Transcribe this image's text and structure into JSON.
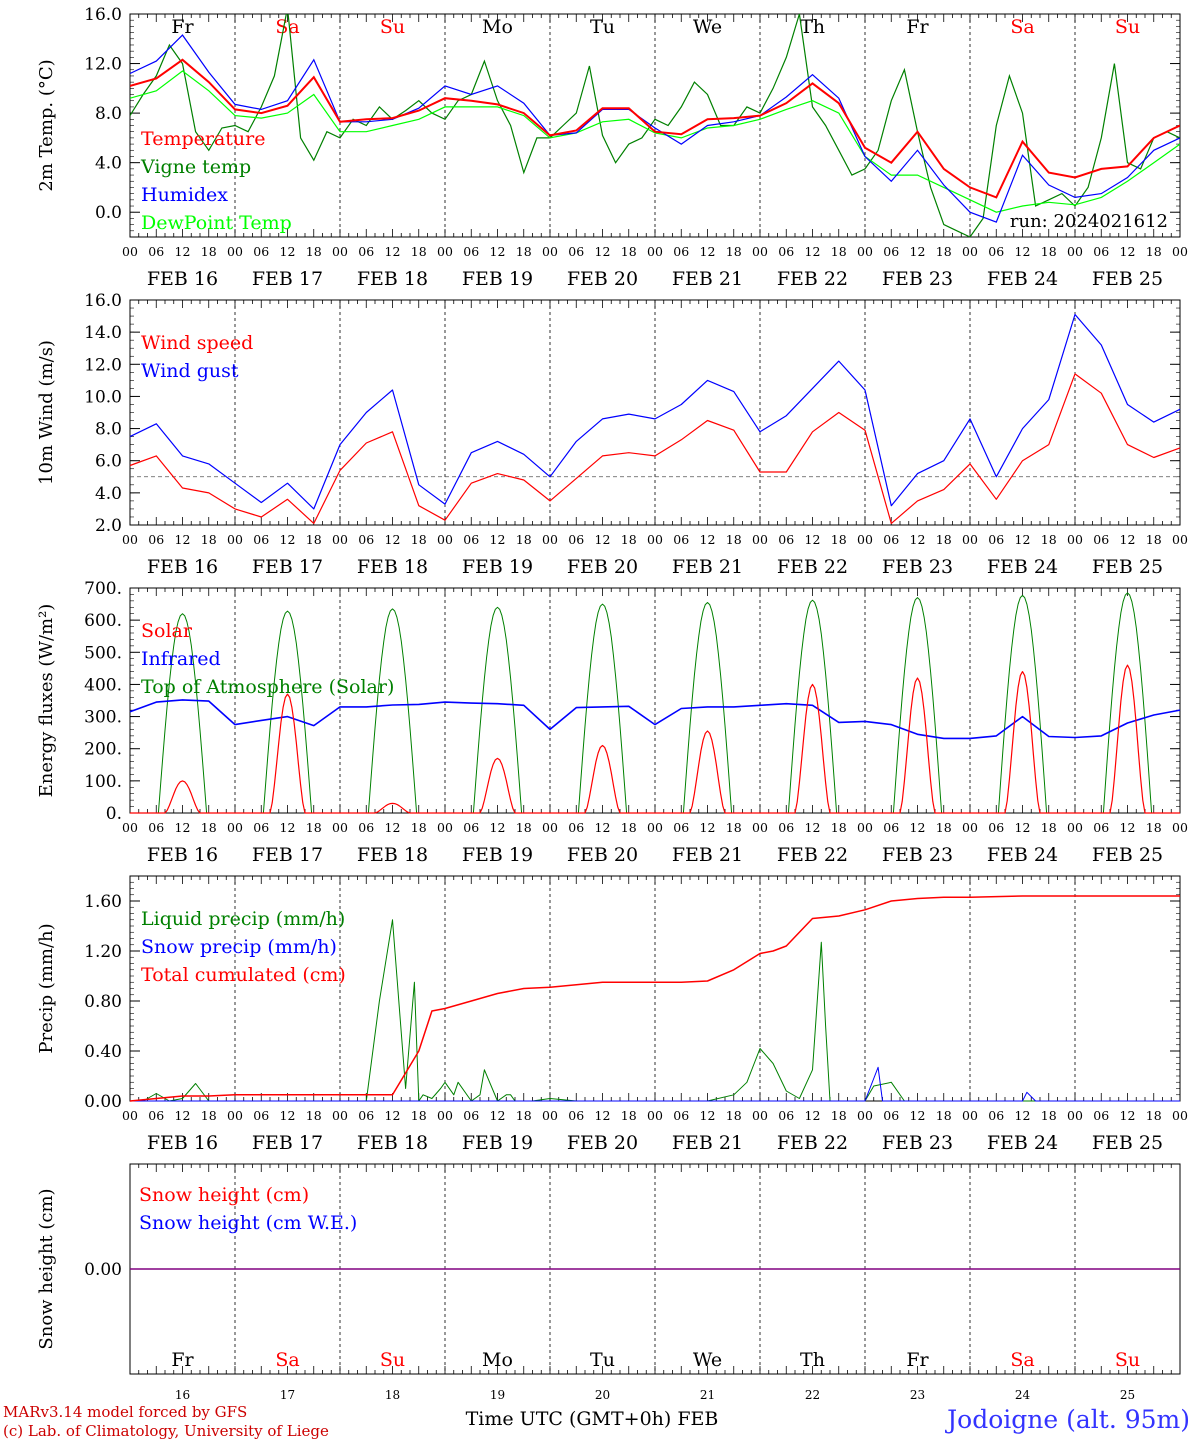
{
  "chart_data": [
    {
      "type": "line",
      "ylabel": "2m Temp. (°C)",
      "ylim": [
        -2.0,
        16.0
      ],
      "yticks": [
        "0.0",
        "4.0",
        "8.0",
        "12.0",
        "16.0"
      ],
      "x_unit": "hours since 00 UTC FEB 16",
      "day_labels": [
        "Fr",
        "Sa",
        "Su",
        "Mo",
        "Tu",
        "We",
        "Th",
        "Fr",
        "Sa",
        "Su"
      ],
      "legend": [
        "Temperature",
        "Vigne temp",
        "Humidex",
        "DewPoint Temp"
      ],
      "annotation": "run: 2024021612",
      "series": [
        {
          "name": "Temperature",
          "color": "#ff0000",
          "x": [
            0,
            6,
            12,
            18,
            24,
            30,
            36,
            42,
            48,
            54,
            60,
            66,
            72,
            78,
            84,
            90,
            96,
            102,
            108,
            114,
            120,
            126,
            132,
            138,
            144,
            150,
            156,
            162,
            168,
            174,
            180,
            186,
            192,
            198,
            204,
            210,
            216,
            222,
            228,
            234,
            240
          ],
          "y": [
            10.2,
            10.8,
            12.3,
            10.5,
            8.3,
            8.0,
            8.6,
            10.9,
            7.3,
            7.5,
            7.6,
            8.2,
            9.2,
            9.0,
            8.7,
            8.0,
            6.2,
            6.6,
            8.4,
            8.4,
            6.5,
            6.3,
            7.5,
            7.6,
            7.8,
            8.8,
            10.4,
            8.8,
            5.2,
            4.0,
            6.5,
            3.5,
            2.0,
            1.2,
            5.7,
            3.2,
            2.8,
            3.5,
            3.7,
            6.0,
            7.0
          ]
        },
        {
          "name": "Vigne temp",
          "color": "#008000",
          "x": [
            0,
            3,
            6,
            9,
            12,
            15,
            18,
            21,
            24,
            27,
            30,
            33,
            36,
            39,
            42,
            45,
            48,
            51,
            54,
            57,
            60,
            63,
            66,
            69,
            72,
            75,
            78,
            81,
            84,
            87,
            90,
            93,
            96,
            99,
            102,
            105,
            108,
            111,
            114,
            117,
            120,
            123,
            126,
            129,
            132,
            135,
            138,
            141,
            144,
            147,
            150,
            153,
            156,
            159,
            162,
            165,
            168,
            171,
            174,
            177,
            180,
            183,
            186,
            189,
            192,
            195,
            198,
            201,
            204,
            207,
            210,
            213,
            216,
            219,
            222,
            225,
            228,
            231,
            234,
            237,
            240
          ],
          "y": [
            7.8,
            9.5,
            11.0,
            13.5,
            12.0,
            6.5,
            5.0,
            6.8,
            7.0,
            6.5,
            8.5,
            11.0,
            16.5,
            6.0,
            4.2,
            6.5,
            6.0,
            7.5,
            7.0,
            8.5,
            7.5,
            8.2,
            9.0,
            8.0,
            7.5,
            9.0,
            9.5,
            12.2,
            9.0,
            7.0,
            3.2,
            6.0,
            6.0,
            7.0,
            8.0,
            11.8,
            6.2,
            4.0,
            5.5,
            6.0,
            7.5,
            7.0,
            8.5,
            10.5,
            9.5,
            7.0,
            7.0,
            8.5,
            8.0,
            10.0,
            12.5,
            16.0,
            8.5,
            7.0,
            5.0,
            3.0,
            3.5,
            5.0,
            9.0,
            11.5,
            6.5,
            2.0,
            -1.0,
            -1.5,
            -2.0,
            -0.5,
            7.0,
            11.0,
            8.0,
            0.5,
            1.0,
            1.5,
            0.5,
            2.0,
            6.0,
            12.0,
            4.0,
            3.5,
            6.0,
            6.5,
            6.0
          ]
        },
        {
          "name": "Humidex",
          "color": "#0000ff",
          "x": [
            0,
            6,
            12,
            18,
            24,
            30,
            36,
            42,
            48,
            54,
            60,
            66,
            72,
            78,
            84,
            90,
            96,
            102,
            108,
            114,
            120,
            126,
            132,
            138,
            144,
            150,
            156,
            162,
            168,
            174,
            180,
            186,
            192,
            198,
            204,
            210,
            216,
            222,
            228,
            234,
            240
          ],
          "y": [
            11.2,
            12.2,
            14.3,
            11.3,
            8.7,
            8.3,
            9.0,
            12.3,
            7.3,
            7.3,
            7.5,
            8.4,
            10.2,
            9.5,
            10.2,
            8.8,
            6.2,
            6.4,
            8.3,
            8.3,
            6.8,
            5.5,
            7.0,
            7.3,
            7.8,
            9.3,
            11.1,
            9.2,
            4.5,
            2.5,
            5.0,
            2.2,
            0.0,
            -0.8,
            4.6,
            2.2,
            1.2,
            1.5,
            2.8,
            5.0,
            6.0
          ]
        },
        {
          "name": "DewPoint Temp",
          "color": "#00ff00",
          "x": [
            0,
            6,
            12,
            18,
            24,
            30,
            36,
            42,
            48,
            54,
            60,
            66,
            72,
            78,
            84,
            90,
            96,
            102,
            108,
            114,
            120,
            126,
            132,
            138,
            144,
            150,
            156,
            162,
            168,
            174,
            180,
            186,
            192,
            198,
            204,
            210,
            216,
            222,
            228,
            234,
            240
          ],
          "y": [
            9.2,
            9.8,
            11.4,
            9.8,
            7.8,
            7.6,
            8.0,
            9.5,
            6.5,
            6.5,
            7.0,
            7.5,
            8.5,
            8.5,
            8.5,
            7.8,
            6.0,
            6.4,
            7.3,
            7.5,
            6.4,
            6.0,
            6.8,
            7.0,
            7.5,
            8.3,
            9.0,
            8.0,
            4.5,
            3.0,
            3.0,
            2.0,
            1.0,
            0.0,
            0.5,
            0.8,
            0.6,
            1.2,
            2.5,
            4.0,
            5.5
          ]
        }
      ]
    },
    {
      "type": "line",
      "ylabel": "10m Wind (m/s)",
      "ylim": [
        2.0,
        16.0
      ],
      "yticks": [
        "2.0",
        "4.0",
        "6.0",
        "8.0",
        "10.0",
        "12.0",
        "14.0",
        "16.0"
      ],
      "legend": [
        "Wind speed",
        "Wind gust"
      ],
      "reference_line": 5.0,
      "series": [
        {
          "name": "Wind speed",
          "color": "#ff0000",
          "x": [
            0,
            6,
            12,
            18,
            24,
            30,
            36,
            42,
            48,
            54,
            60,
            66,
            72,
            78,
            84,
            90,
            96,
            102,
            108,
            114,
            120,
            126,
            132,
            138,
            144,
            150,
            156,
            162,
            168,
            174,
            180,
            186,
            192,
            198,
            204,
            210,
            216,
            222,
            228,
            234,
            240
          ],
          "y": [
            5.7,
            6.3,
            4.3,
            4.0,
            3.0,
            2.5,
            3.6,
            2.1,
            5.4,
            7.1,
            7.8,
            3.2,
            2.3,
            4.6,
            5.2,
            4.8,
            3.5,
            4.9,
            6.3,
            6.5,
            6.3,
            7.3,
            8.5,
            7.9,
            5.3,
            5.3,
            7.8,
            9.0,
            7.9,
            2.1,
            3.5,
            4.2,
            5.8,
            3.6,
            6.0,
            7.0,
            11.4,
            10.2,
            7.0,
            6.2,
            6.8
          ]
        },
        {
          "name": "Wind gust",
          "color": "#0000ff",
          "x": [
            0,
            6,
            12,
            18,
            24,
            30,
            36,
            42,
            48,
            54,
            60,
            66,
            72,
            78,
            84,
            90,
            96,
            102,
            108,
            114,
            120,
            126,
            132,
            138,
            144,
            150,
            156,
            162,
            168,
            174,
            180,
            186,
            192,
            198,
            204,
            210,
            216,
            222,
            228,
            234,
            240
          ],
          "y": [
            7.5,
            8.3,
            6.3,
            5.8,
            4.6,
            3.4,
            4.6,
            3.0,
            7.0,
            9.0,
            10.4,
            4.5,
            3.3,
            6.5,
            7.2,
            6.4,
            5.0,
            7.2,
            8.6,
            8.9,
            8.6,
            9.5,
            11.0,
            10.3,
            7.8,
            8.8,
            10.5,
            12.2,
            10.4,
            3.2,
            5.2,
            6.0,
            8.6,
            5.0,
            8.0,
            9.8,
            15.1,
            13.2,
            9.5,
            8.4,
            9.2
          ]
        }
      ]
    },
    {
      "type": "line",
      "ylabel": "Energy fluxes (W/m²)",
      "ylim": [
        0,
        700
      ],
      "yticks": [
        "0.",
        "100.",
        "200.",
        "300.",
        "400.",
        "500.",
        "600.",
        "700."
      ],
      "legend": [
        "Solar",
        "Infrared",
        "Top of Atmosphere (Solar)"
      ],
      "toa_peaks": [
        620,
        628,
        635,
        640,
        650,
        655,
        662,
        670,
        677,
        685
      ],
      "solar_peaks": [
        100,
        370,
        30,
        170,
        210,
        255,
        400,
        420,
        440,
        460
      ],
      "series": [
        {
          "name": "Infrared",
          "color": "#0000ff",
          "x": [
            0,
            6,
            12,
            18,
            24,
            30,
            36,
            42,
            48,
            54,
            60,
            66,
            72,
            78,
            84,
            90,
            96,
            102,
            108,
            114,
            120,
            126,
            132,
            138,
            144,
            150,
            156,
            162,
            168,
            174,
            180,
            186,
            192,
            198,
            204,
            210,
            216,
            222,
            228,
            234,
            240
          ],
          "y": [
            315,
            345,
            352,
            348,
            275,
            288,
            300,
            272,
            330,
            330,
            336,
            338,
            345,
            342,
            340,
            335,
            260,
            328,
            330,
            332,
            275,
            325,
            330,
            330,
            335,
            340,
            335,
            282,
            285,
            275,
            245,
            232,
            232,
            240,
            300,
            238,
            235,
            240,
            280,
            305,
            320
          ]
        }
      ]
    },
    {
      "type": "line",
      "ylabel": "Precip (mm/h)",
      "ylim": [
        0.0,
        1.8
      ],
      "yticks": [
        "0.00",
        "0.40",
        "0.80",
        "1.20",
        "1.60"
      ],
      "legend": [
        "Liquid precip (mm/h)",
        "Snow precip (mm/h)",
        "Total cumulated (cm)"
      ],
      "series": [
        {
          "name": "Total cumulated (cm)",
          "color": "#ff0000",
          "x": [
            0,
            6,
            12,
            18,
            24,
            36,
            48,
            60,
            66,
            69,
            72,
            78,
            84,
            90,
            96,
            102,
            108,
            114,
            120,
            126,
            132,
            138,
            144,
            147,
            150,
            156,
            159,
            162,
            168,
            174,
            180,
            186,
            192,
            204,
            216,
            228,
            240
          ],
          "y": [
            0.0,
            0.02,
            0.04,
            0.04,
            0.05,
            0.05,
            0.05,
            0.05,
            0.4,
            0.72,
            0.74,
            0.8,
            0.86,
            0.9,
            0.91,
            0.93,
            0.95,
            0.95,
            0.95,
            0.95,
            0.96,
            1.05,
            1.18,
            1.2,
            1.24,
            1.46,
            1.47,
            1.48,
            1.53,
            1.6,
            1.62,
            1.63,
            1.63,
            1.64,
            1.64,
            1.64,
            1.64
          ]
        },
        {
          "name": "Liquid precip (mm/h)",
          "color": "#008000",
          "x": [
            0,
            3,
            6,
            9,
            12,
            15,
            18,
            21,
            24,
            30,
            36,
            42,
            48,
            54,
            57,
            60,
            63,
            65,
            66,
            67,
            69,
            71,
            72,
            74,
            75,
            78,
            80,
            81,
            84,
            86,
            87,
            88,
            90,
            92,
            96,
            102,
            108,
            114,
            120,
            126,
            132,
            138,
            141,
            144,
            147,
            150,
            153,
            156,
            158,
            159,
            160,
            162,
            168,
            170,
            174,
            177,
            180,
            186,
            192,
            198,
            204,
            210,
            216,
            222,
            228,
            234,
            240
          ],
          "y": [
            0.0,
            0.0,
            0.06,
            0.0,
            0.02,
            0.14,
            0.0,
            0.0,
            0.0,
            0.0,
            0.0,
            0.0,
            0.0,
            0.0,
            0.8,
            1.45,
            0.1,
            0.95,
            0.0,
            0.05,
            0.02,
            0.1,
            0.15,
            0.05,
            0.15,
            0.0,
            0.05,
            0.25,
            0.0,
            0.05,
            0.05,
            0.0,
            0.0,
            0.0,
            0.02,
            0.0,
            0.0,
            0.0,
            0.0,
            0.0,
            0.0,
            0.05,
            0.15,
            0.42,
            0.3,
            0.08,
            0.02,
            0.25,
            1.27,
            0.6,
            0.0,
            0.0,
            0.0,
            0.12,
            0.15,
            0.0,
            0.0,
            0.0,
            0.0,
            0.0,
            0.0,
            0.0,
            0.0,
            0.0,
            0.0,
            0.0,
            0.0
          ]
        },
        {
          "name": "Snow precip (mm/h)",
          "color": "#0000ff",
          "x": [
            0,
            168,
            171,
            172,
            174,
            180,
            204,
            205,
            207,
            240
          ],
          "y": [
            0.0,
            0.0,
            0.27,
            0.0,
            0.0,
            0.0,
            0.0,
            0.07,
            0.0,
            0.0
          ]
        }
      ]
    },
    {
      "type": "line",
      "ylabel": "Snow height (cm)",
      "yticks": [
        "0.00"
      ],
      "legend": [
        "Snow height (cm)",
        "Snow height (cm W.E.)"
      ],
      "series": [
        {
          "name": "Snow height (cm)",
          "color": "#800080",
          "x": [
            0,
            240
          ],
          "y": [
            0.0,
            0.0
          ]
        }
      ]
    }
  ],
  "x_axis": {
    "hour_ticks": [
      "00",
      "06",
      "12",
      "18"
    ],
    "end_tick": "00",
    "date_labels": [
      "FEB 16",
      "FEB 17",
      "FEB 18",
      "FEB 19",
      "FEB 20",
      "FEB 21",
      "FEB 22",
      "FEB 23",
      "FEB 24",
      "FEB 25"
    ],
    "day_numbers": [
      "16",
      "17",
      "18",
      "19",
      "20",
      "21",
      "22",
      "23",
      "24",
      "25"
    ],
    "weekend_days": [
      1,
      2,
      8,
      9
    ]
  },
  "colors": {
    "weekday": "#000000",
    "weekend": "#ff0000",
    "location": "#3333ff",
    "credits": "#cc0000"
  },
  "footer": {
    "credit_line1": "MARv3.14 model forced by GFS",
    "credit_line2": "(c) Lab. of Climatology, University of Liege",
    "axis_title": "Time UTC (GMT+0h) FEB",
    "location": "Jodoigne (alt. 95m)"
  }
}
